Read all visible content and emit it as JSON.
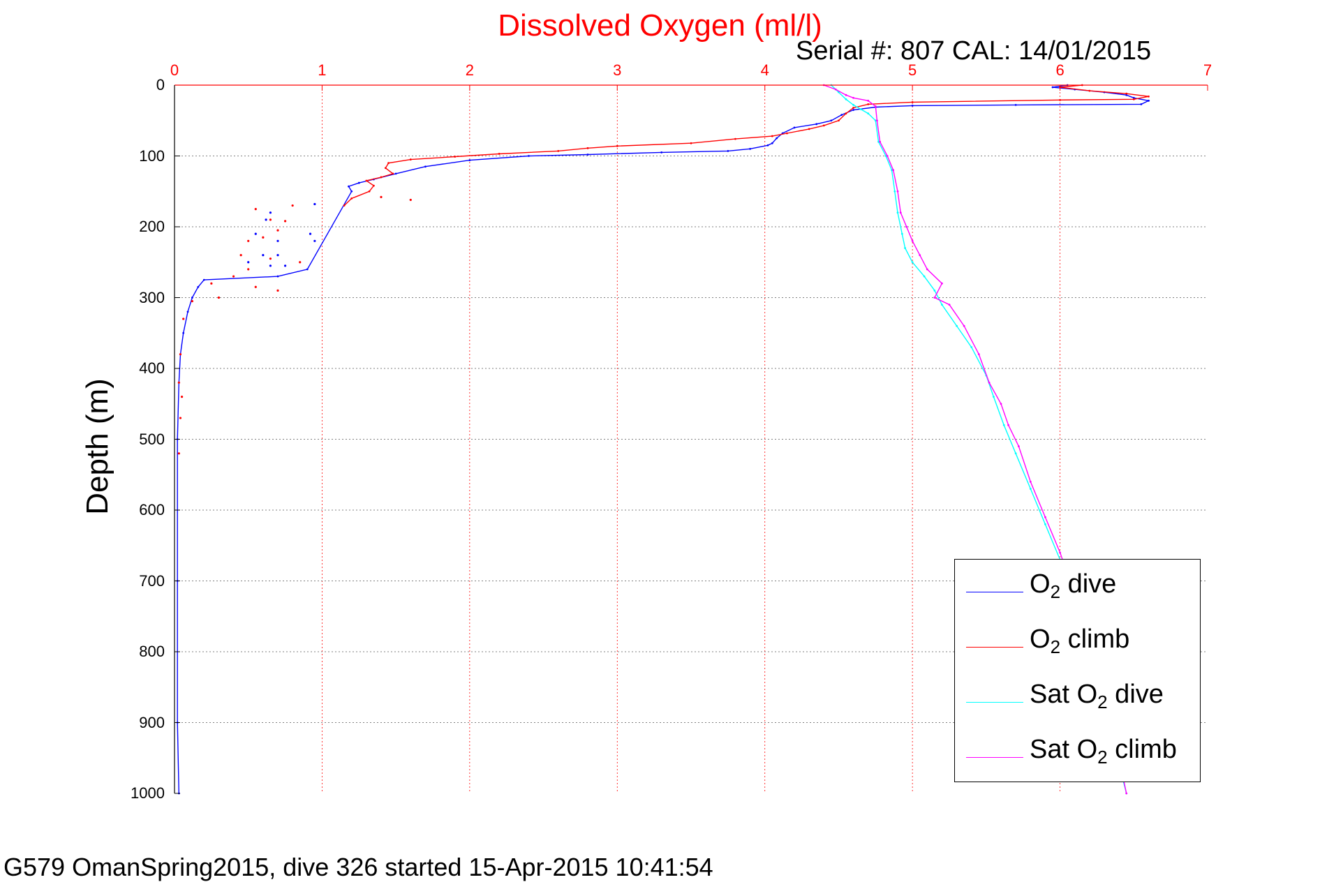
{
  "chart_data": {
    "type": "line",
    "title": "Dissolved Oxygen (ml/l)",
    "subtitle": "Serial #: 807  CAL: 14/01/2015",
    "ylabel": "Depth (m)",
    "footer": "G579 OmanSpring2015, dive 326 started 15-Apr-2015 10:41:54",
    "xlim": [
      0,
      7
    ],
    "ylim": [
      0,
      1000
    ],
    "y_reversed": true,
    "x_axis_position": "top",
    "xticks": [
      "0",
      "1",
      "2",
      "3",
      "4",
      "5",
      "6",
      "7"
    ],
    "yticks": [
      "0",
      "100",
      "200",
      "300",
      "400",
      "500",
      "600",
      "700",
      "800",
      "900",
      "1000"
    ],
    "grid": true,
    "legend_placement": "bottom-right",
    "series": [
      {
        "name": "O2 dive",
        "label": {
          "pre": "O",
          "sub": "2",
          "post": " dive"
        },
        "color": "#0000ff",
        "points": [
          [
            6.05,
            0
          ],
          [
            5.95,
            3
          ],
          [
            6.1,
            6
          ],
          [
            6.3,
            10
          ],
          [
            6.45,
            14
          ],
          [
            6.5,
            18
          ],
          [
            6.6,
            22
          ],
          [
            6.55,
            27
          ],
          [
            5.7,
            28
          ],
          [
            5.0,
            29
          ],
          [
            4.75,
            31
          ],
          [
            4.6,
            35
          ],
          [
            4.52,
            42
          ],
          [
            4.45,
            50
          ],
          [
            4.35,
            55
          ],
          [
            4.2,
            60
          ],
          [
            4.12,
            68
          ],
          [
            4.08,
            75
          ],
          [
            4.05,
            82
          ],
          [
            4.02,
            85
          ],
          [
            3.9,
            90
          ],
          [
            3.75,
            93
          ],
          [
            3.3,
            95
          ],
          [
            2.8,
            98
          ],
          [
            2.4,
            100
          ],
          [
            2.0,
            106
          ],
          [
            1.7,
            115
          ],
          [
            1.5,
            125
          ],
          [
            1.35,
            133
          ],
          [
            1.25,
            138
          ],
          [
            1.18,
            143
          ],
          [
            1.2,
            150
          ],
          [
            0.9,
            260
          ],
          [
            0.7,
            270
          ],
          [
            0.2,
            275
          ],
          [
            0.16,
            285
          ],
          [
            0.12,
            300
          ],
          [
            0.09,
            320
          ],
          [
            0.06,
            350
          ],
          [
            0.04,
            380
          ],
          [
            0.03,
            420
          ],
          [
            0.02,
            500
          ],
          [
            0.02,
            700
          ],
          [
            0.02,
            900
          ],
          [
            0.03,
            1000
          ]
        ],
        "scatter": [
          [
            0.95,
            168
          ],
          [
            0.65,
            180
          ],
          [
            0.62,
            190
          ],
          [
            0.55,
            210
          ],
          [
            0.7,
            220
          ],
          [
            0.92,
            210
          ],
          [
            0.95,
            220
          ],
          [
            0.6,
            240
          ],
          [
            0.5,
            250
          ],
          [
            0.65,
            255
          ],
          [
            0.75,
            255
          ],
          [
            0.7,
            240
          ]
        ]
      },
      {
        "name": "O2 climb",
        "label": {
          "pre": "O",
          "sub": "2",
          "post": " climb"
        },
        "color": "#ff0000",
        "points": [
          [
            6.15,
            0
          ],
          [
            6.0,
            3
          ],
          [
            6.2,
            8
          ],
          [
            6.45,
            12
          ],
          [
            6.6,
            16
          ],
          [
            6.5,
            20
          ],
          [
            6.0,
            21
          ],
          [
            5.0,
            24
          ],
          [
            4.7,
            27
          ],
          [
            4.6,
            32
          ],
          [
            4.55,
            40
          ],
          [
            4.5,
            50
          ],
          [
            4.4,
            57
          ],
          [
            4.3,
            62
          ],
          [
            4.15,
            68
          ],
          [
            4.05,
            72
          ],
          [
            3.8,
            76
          ],
          [
            3.5,
            82
          ],
          [
            3.0,
            86
          ],
          [
            2.8,
            89
          ],
          [
            2.6,
            93
          ],
          [
            2.2,
            97
          ],
          [
            1.9,
            101
          ],
          [
            1.6,
            105
          ],
          [
            1.45,
            110
          ],
          [
            1.43,
            117
          ],
          [
            1.48,
            125
          ],
          [
            1.4,
            130
          ],
          [
            1.3,
            135
          ],
          [
            1.35,
            142
          ],
          [
            1.32,
            150
          ],
          [
            1.2,
            160
          ],
          [
            1.15,
            170
          ]
        ],
        "scatter": [
          [
            1.6,
            162
          ],
          [
            1.4,
            158
          ],
          [
            0.8,
            170
          ],
          [
            0.55,
            175
          ],
          [
            0.65,
            190
          ],
          [
            0.75,
            192
          ],
          [
            0.7,
            205
          ],
          [
            0.6,
            215
          ],
          [
            0.5,
            220
          ],
          [
            0.45,
            240
          ],
          [
            0.65,
            245
          ],
          [
            0.85,
            250
          ],
          [
            0.5,
            260
          ],
          [
            0.4,
            270
          ],
          [
            0.25,
            280
          ],
          [
            0.55,
            285
          ],
          [
            0.7,
            290
          ],
          [
            0.3,
            300
          ],
          [
            0.12,
            305
          ],
          [
            0.06,
            330
          ],
          [
            0.04,
            380
          ],
          [
            0.03,
            420
          ],
          [
            0.05,
            440
          ],
          [
            0.04,
            470
          ],
          [
            0.03,
            520
          ]
        ]
      },
      {
        "name": "Sat O2 dive",
        "label": {
          "pre": "Sat O",
          "sub": "2",
          "post": " dive"
        },
        "color": "#00ffff",
        "points": [
          [
            4.45,
            0
          ],
          [
            4.5,
            10
          ],
          [
            4.55,
            20
          ],
          [
            4.6,
            28
          ],
          [
            4.65,
            34
          ],
          [
            4.7,
            40
          ],
          [
            4.75,
            50
          ],
          [
            4.77,
            80
          ],
          [
            4.82,
            100
          ],
          [
            4.86,
            120
          ],
          [
            4.88,
            150
          ],
          [
            4.9,
            180
          ],
          [
            4.93,
            210
          ],
          [
            4.95,
            230
          ],
          [
            5.0,
            250
          ],
          [
            5.08,
            270
          ],
          [
            5.15,
            290
          ],
          [
            5.2,
            310
          ],
          [
            5.3,
            340
          ],
          [
            5.4,
            370
          ],
          [
            5.5,
            410
          ],
          [
            5.55,
            440
          ],
          [
            5.62,
            480
          ],
          [
            5.7,
            520
          ],
          [
            5.8,
            570
          ],
          [
            5.9,
            620
          ],
          [
            6.0,
            670
          ],
          [
            6.1,
            730
          ],
          [
            6.2,
            790
          ],
          [
            6.28,
            850
          ],
          [
            6.35,
            920
          ],
          [
            6.45,
            1000
          ]
        ]
      },
      {
        "name": "Sat O2 climb",
        "label": {
          "pre": "Sat O",
          "sub": "2",
          "post": " climb"
        },
        "color": "#ff00ff",
        "points": [
          [
            4.4,
            0
          ],
          [
            4.48,
            6
          ],
          [
            4.55,
            14
          ],
          [
            4.6,
            18
          ],
          [
            4.7,
            22
          ],
          [
            4.75,
            30
          ],
          [
            4.76,
            50
          ],
          [
            4.78,
            80
          ],
          [
            4.83,
            100
          ],
          [
            4.87,
            120
          ],
          [
            4.9,
            150
          ],
          [
            4.92,
            180
          ],
          [
            4.96,
            200
          ],
          [
            5.0,
            220
          ],
          [
            5.05,
            240
          ],
          [
            5.1,
            260
          ],
          [
            5.2,
            280
          ],
          [
            5.15,
            300
          ],
          [
            5.25,
            310
          ],
          [
            5.35,
            340
          ],
          [
            5.45,
            380
          ],
          [
            5.52,
            420
          ],
          [
            5.6,
            450
          ],
          [
            5.65,
            480
          ],
          [
            5.72,
            510
          ],
          [
            5.8,
            560
          ],
          [
            5.9,
            610
          ],
          [
            6.0,
            660
          ],
          [
            6.1,
            720
          ],
          [
            6.2,
            790
          ],
          [
            6.3,
            860
          ],
          [
            6.38,
            930
          ],
          [
            6.45,
            1000
          ]
        ]
      }
    ]
  }
}
